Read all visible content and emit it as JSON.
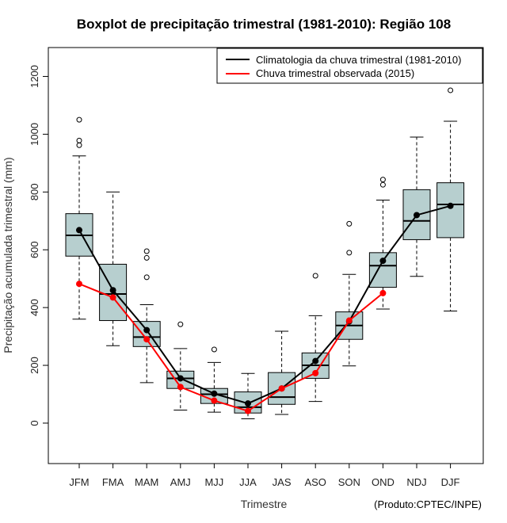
{
  "chart_data": {
    "type": "boxplot",
    "title": "Boxplot de precipitação trimestral (1981-2010): Região 108",
    "xlabel": "Trimestre",
    "ylabel": "Precipitação acumulada trimestral (mm)",
    "credit": "(Produto:CPTEC/INPE)",
    "ylim": [
      -140,
      1300
    ],
    "yticks": [
      0,
      200,
      400,
      600,
      800,
      1000,
      1200
    ],
    "categories": [
      "JFM",
      "FMA",
      "MAM",
      "AMJ",
      "MJJ",
      "JJA",
      "JAS",
      "ASO",
      "SON",
      "OND",
      "NDJ",
      "DJF"
    ],
    "boxes": [
      {
        "min": 360,
        "q1": 578,
        "median": 650,
        "q3": 725,
        "max": 925,
        "outliers": [
          1050,
          978,
          962
        ]
      },
      {
        "min": 268,
        "q1": 355,
        "median": 447,
        "q3": 550,
        "max": 800,
        "outliers": []
      },
      {
        "min": 140,
        "q1": 265,
        "median": 298,
        "q3": 352,
        "max": 410,
        "outliers": [
          595,
          572,
          505
        ]
      },
      {
        "min": 45,
        "q1": 120,
        "median": 155,
        "q3": 180,
        "max": 258,
        "outliers": [
          342
        ]
      },
      {
        "min": 38,
        "q1": 68,
        "median": 100,
        "q3": 120,
        "max": 210,
        "outliers": [
          255
        ]
      },
      {
        "min": 15,
        "q1": 35,
        "median": 55,
        "q3": 108,
        "max": 172,
        "outliers": []
      },
      {
        "min": 30,
        "q1": 65,
        "median": 90,
        "q3": 175,
        "max": 318,
        "outliers": []
      },
      {
        "min": 75,
        "q1": 155,
        "median": 200,
        "q3": 243,
        "max": 372,
        "outliers": [
          510
        ]
      },
      {
        "min": 198,
        "q1": 290,
        "median": 338,
        "q3": 385,
        "max": 515,
        "outliers": [
          690,
          590
        ]
      },
      {
        "min": 395,
        "q1": 470,
        "median": 545,
        "q3": 590,
        "max": 772,
        "outliers": [
          843,
          825
        ]
      },
      {
        "min": 508,
        "q1": 635,
        "median": 700,
        "q3": 808,
        "max": 990,
        "outliers": []
      },
      {
        "min": 388,
        "q1": 642,
        "median": 757,
        "q3": 832,
        "max": 1045,
        "outliers": [
          1152
        ]
      }
    ],
    "series": [
      {
        "name": "Climatologia da chuva trimestral (1981-2010)",
        "color": "#000000",
        "values": [
          668,
          460,
          322,
          155,
          102,
          68,
          120,
          215,
          352,
          562,
          720,
          752
        ]
      },
      {
        "name": "Chuva trimestral observada (2015)",
        "color": "#ff0000",
        "values": [
          482,
          435,
          290,
          125,
          78,
          42,
          120,
          173,
          355,
          450,
          null,
          null
        ]
      }
    ],
    "box_fill": "#b7cfcf",
    "legend_position": "top-right"
  }
}
